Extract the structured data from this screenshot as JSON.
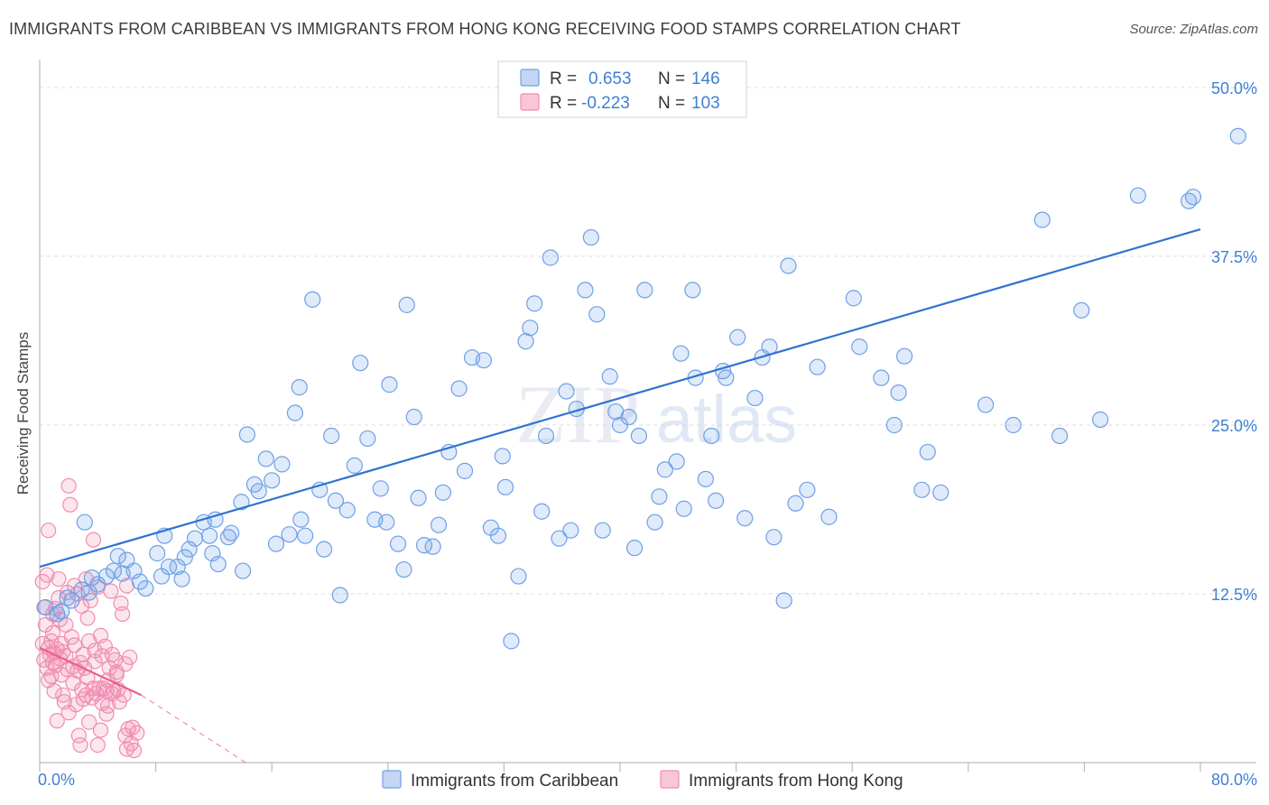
{
  "title": "IMMIGRANTS FROM CARIBBEAN VS IMMIGRANTS FROM HONG KONG RECEIVING FOOD STAMPS CORRELATION CHART",
  "source": "Source: ZipAtlas.com",
  "watermark": {
    "zip": "ZIP",
    "atlas": "atlas"
  },
  "stats": [
    {
      "r_label": "R = ",
      "r_value": "0.653",
      "n_label": "N = ",
      "n_value": "146"
    },
    {
      "r_label": "R = ",
      "r_value": "-0.223",
      "n_label": "N = ",
      "n_value": "103"
    }
  ],
  "colors": {
    "blue": "#6fa0e6",
    "blue_line": "#2f73d0",
    "pink": "#f08cb0",
    "pink_line": "#e8608e",
    "axis_text": "#3f7fd4"
  },
  "chart_data": {
    "type": "scatter",
    "title": "IMMIGRANTS FROM CARIBBEAN VS IMMIGRANTS FROM HONG KONG RECEIVING FOOD STAMPS CORRELATION CHART",
    "xlabel": "",
    "ylabel": "Receiving Food Stamps",
    "xlim": [
      0,
      80
    ],
    "ylim": [
      0,
      50
    ],
    "x_tick_labels": [
      "0.0%",
      "80.0%"
    ],
    "y_ticks": [
      12.5,
      25.0,
      37.5,
      50.0
    ],
    "y_tick_labels": [
      "12.5%",
      "25.0%",
      "37.5%",
      "50.0%"
    ],
    "grid": true,
    "legend_position": "bottom",
    "series": [
      {
        "name": "Immigrants from Caribbean",
        "color": "#6fa0e6",
        "trend": {
          "x": [
            0,
            80
          ],
          "y": [
            14.5,
            39.5
          ]
        },
        "points": [
          [
            0.4,
            11.5
          ],
          [
            1.2,
            11.0
          ],
          [
            1.5,
            11.2
          ],
          [
            1.9,
            12.2
          ],
          [
            2.2,
            12.0
          ],
          [
            2.9,
            12.8
          ],
          [
            3.1,
            17.8
          ],
          [
            3.4,
            12.6
          ],
          [
            3.6,
            13.7
          ],
          [
            4.0,
            13.2
          ],
          [
            4.6,
            13.8
          ],
          [
            5.1,
            14.2
          ],
          [
            5.4,
            15.3
          ],
          [
            5.7,
            14.0
          ],
          [
            6.0,
            15.0
          ],
          [
            6.5,
            14.2
          ],
          [
            6.9,
            13.4
          ],
          [
            7.3,
            12.9
          ],
          [
            8.1,
            15.5
          ],
          [
            8.4,
            13.8
          ],
          [
            8.6,
            16.8
          ],
          [
            8.9,
            14.5
          ],
          [
            9.5,
            14.5
          ],
          [
            9.8,
            13.6
          ],
          [
            10.0,
            15.2
          ],
          [
            10.3,
            15.8
          ],
          [
            10.7,
            16.6
          ],
          [
            11.3,
            17.8
          ],
          [
            11.7,
            16.8
          ],
          [
            11.9,
            15.5
          ],
          [
            12.1,
            18.0
          ],
          [
            12.3,
            14.7
          ],
          [
            13.0,
            16.7
          ],
          [
            13.2,
            17.0
          ],
          [
            13.9,
            19.3
          ],
          [
            14.0,
            14.2
          ],
          [
            14.3,
            24.3
          ],
          [
            14.8,
            20.6
          ],
          [
            15.1,
            20.1
          ],
          [
            15.6,
            22.5
          ],
          [
            16.0,
            20.9
          ],
          [
            16.3,
            16.2
          ],
          [
            16.7,
            22.1
          ],
          [
            17.2,
            16.9
          ],
          [
            17.6,
            25.9
          ],
          [
            17.9,
            27.8
          ],
          [
            18.0,
            18.0
          ],
          [
            18.3,
            16.8
          ],
          [
            18.8,
            34.3
          ],
          [
            19.3,
            20.2
          ],
          [
            19.6,
            15.8
          ],
          [
            20.1,
            24.2
          ],
          [
            20.4,
            19.4
          ],
          [
            20.7,
            12.4
          ],
          [
            21.2,
            18.7
          ],
          [
            21.7,
            22.0
          ],
          [
            22.1,
            29.6
          ],
          [
            22.6,
            24.0
          ],
          [
            23.1,
            18.0
          ],
          [
            23.5,
            20.3
          ],
          [
            23.9,
            17.8
          ],
          [
            24.1,
            28.0
          ],
          [
            24.7,
            16.2
          ],
          [
            25.1,
            14.3
          ],
          [
            25.3,
            33.9
          ],
          [
            25.8,
            25.6
          ],
          [
            26.1,
            19.6
          ],
          [
            26.5,
            16.1
          ],
          [
            27.1,
            16.0
          ],
          [
            27.5,
            17.6
          ],
          [
            27.8,
            20.0
          ],
          [
            28.2,
            23.0
          ],
          [
            28.9,
            27.7
          ],
          [
            29.3,
            21.6
          ],
          [
            29.8,
            30.0
          ],
          [
            30.6,
            29.8
          ],
          [
            31.1,
            17.4
          ],
          [
            31.6,
            16.8
          ],
          [
            31.9,
            22.7
          ],
          [
            32.1,
            20.4
          ],
          [
            32.5,
            9.0
          ],
          [
            33.0,
            13.8
          ],
          [
            33.5,
            31.2
          ],
          [
            33.8,
            32.2
          ],
          [
            34.1,
            34.0
          ],
          [
            34.6,
            18.6
          ],
          [
            34.9,
            24.2
          ],
          [
            35.2,
            37.4
          ],
          [
            35.8,
            16.6
          ],
          [
            36.3,
            27.5
          ],
          [
            36.6,
            17.2
          ],
          [
            37.0,
            26.2
          ],
          [
            37.6,
            35.0
          ],
          [
            38.0,
            38.9
          ],
          [
            38.4,
            33.2
          ],
          [
            38.8,
            17.2
          ],
          [
            39.3,
            28.6
          ],
          [
            39.7,
            26.0
          ],
          [
            40.0,
            25.0
          ],
          [
            40.6,
            25.6
          ],
          [
            41.0,
            15.9
          ],
          [
            41.3,
            24.2
          ],
          [
            41.7,
            35.0
          ],
          [
            42.4,
            17.8
          ],
          [
            42.7,
            19.7
          ],
          [
            43.1,
            21.7
          ],
          [
            43.9,
            22.3
          ],
          [
            44.2,
            30.3
          ],
          [
            44.4,
            18.8
          ],
          [
            45.0,
            35.0
          ],
          [
            45.2,
            28.5
          ],
          [
            45.9,
            21.0
          ],
          [
            46.3,
            24.2
          ],
          [
            46.6,
            19.4
          ],
          [
            47.1,
            29.0
          ],
          [
            47.3,
            28.5
          ],
          [
            48.1,
            31.5
          ],
          [
            48.6,
            18.1
          ],
          [
            49.3,
            27.0
          ],
          [
            49.8,
            30.0
          ],
          [
            50.3,
            30.8
          ],
          [
            50.6,
            16.7
          ],
          [
            51.3,
            12.0
          ],
          [
            51.6,
            36.8
          ],
          [
            52.1,
            19.2
          ],
          [
            52.9,
            20.2
          ],
          [
            53.6,
            29.3
          ],
          [
            54.4,
            18.2
          ],
          [
            56.1,
            34.4
          ],
          [
            56.5,
            30.8
          ],
          [
            58.0,
            28.5
          ],
          [
            58.9,
            25.0
          ],
          [
            59.2,
            27.4
          ],
          [
            59.6,
            30.1
          ],
          [
            60.8,
            20.2
          ],
          [
            61.2,
            23.0
          ],
          [
            62.1,
            20.0
          ],
          [
            65.2,
            26.5
          ],
          [
            67.1,
            25.0
          ],
          [
            69.1,
            40.2
          ],
          [
            70.3,
            24.2
          ],
          [
            71.8,
            33.5
          ],
          [
            73.1,
            25.4
          ],
          [
            75.7,
            42.0
          ],
          [
            79.2,
            41.6
          ],
          [
            79.5,
            41.9
          ],
          [
            82.6,
            46.4
          ]
        ]
      },
      {
        "name": "Immigrants from Hong Kong",
        "color": "#f08cb0",
        "trend": {
          "x": [
            0,
            7
          ],
          "y": [
            8.5,
            5.0
          ]
        },
        "trend_dashed": {
          "x": [
            7,
            14.2
          ],
          "y": [
            5.0,
            0.0
          ]
        },
        "points": [
          [
            0.2,
            13.4
          ],
          [
            0.2,
            8.8
          ],
          [
            0.3,
            7.6
          ],
          [
            0.3,
            11.5
          ],
          [
            0.4,
            10.2
          ],
          [
            0.5,
            7.0
          ],
          [
            0.6,
            8.5
          ],
          [
            0.6,
            6.1
          ],
          [
            0.6,
            17.2
          ],
          [
            0.7,
            8.0
          ],
          [
            0.8,
            9.0
          ],
          [
            0.8,
            6.4
          ],
          [
            0.9,
            9.6
          ],
          [
            0.9,
            7.4
          ],
          [
            1.0,
            8.1
          ],
          [
            1.0,
            5.3
          ],
          [
            1.1,
            11.4
          ],
          [
            1.1,
            7.2
          ],
          [
            1.2,
            3.1
          ],
          [
            1.2,
            8.4
          ],
          [
            1.3,
            13.6
          ],
          [
            1.4,
            7.7
          ],
          [
            1.5,
            8.8
          ],
          [
            1.5,
            6.5
          ],
          [
            1.6,
            5.0
          ],
          [
            1.6,
            8.2
          ],
          [
            1.7,
            4.5
          ],
          [
            1.8,
            7.9
          ],
          [
            1.8,
            10.2
          ],
          [
            1.9,
            6.9
          ],
          [
            2.0,
            3.7
          ],
          [
            2.0,
            20.5
          ],
          [
            2.1,
            19.1
          ],
          [
            2.2,
            9.3
          ],
          [
            2.3,
            7.1
          ],
          [
            2.3,
            5.9
          ],
          [
            2.4,
            8.7
          ],
          [
            2.5,
            4.3
          ],
          [
            2.6,
            6.8
          ],
          [
            2.6,
            12.5
          ],
          [
            2.7,
            2.0
          ],
          [
            2.8,
            7.4
          ],
          [
            2.8,
            1.3
          ],
          [
            2.9,
            5.4
          ],
          [
            3.0,
            8.0
          ],
          [
            3.0,
            4.7
          ],
          [
            3.1,
            7.0
          ],
          [
            3.2,
            13.6
          ],
          [
            3.2,
            5.0
          ],
          [
            3.3,
            6.3
          ],
          [
            3.4,
            9.0
          ],
          [
            3.4,
            3.0
          ],
          [
            3.5,
            12.0
          ],
          [
            3.6,
            4.8
          ],
          [
            3.7,
            5.5
          ],
          [
            3.7,
            16.5
          ],
          [
            3.8,
            8.3
          ],
          [
            3.9,
            5.1
          ],
          [
            4.0,
            1.3
          ],
          [
            4.0,
            13.0
          ],
          [
            4.1,
            5.5
          ],
          [
            4.2,
            2.4
          ],
          [
            4.3,
            7.9
          ],
          [
            4.3,
            4.4
          ],
          [
            4.4,
            5.5
          ],
          [
            4.5,
            8.6
          ],
          [
            4.6,
            3.6
          ],
          [
            4.6,
            5.3
          ],
          [
            4.7,
            6.1
          ],
          [
            4.8,
            7.0
          ],
          [
            4.9,
            12.7
          ],
          [
            5.0,
            5.1
          ],
          [
            5.0,
            8.0
          ],
          [
            5.1,
            5.3
          ],
          [
            5.2,
            7.6
          ],
          [
            5.3,
            6.5
          ],
          [
            5.4,
            5.4
          ],
          [
            5.5,
            4.5
          ],
          [
            5.6,
            11.8
          ],
          [
            5.7,
            11.0
          ],
          [
            5.8,
            5.0
          ],
          [
            5.9,
            7.3
          ],
          [
            6.0,
            13.1
          ],
          [
            6.1,
            2.5
          ],
          [
            6.2,
            7.8
          ],
          [
            6.3,
            1.4
          ],
          [
            6.4,
            2.6
          ],
          [
            0.9,
            11.0
          ],
          [
            1.3,
            12.2
          ],
          [
            1.9,
            12.6
          ],
          [
            2.4,
            13.1
          ],
          [
            3.3,
            10.7
          ],
          [
            4.2,
            9.4
          ],
          [
            5.3,
            6.7
          ],
          [
            0.5,
            13.9
          ],
          [
            1.4,
            10.6
          ],
          [
            2.9,
            11.6
          ],
          [
            3.8,
            7.5
          ],
          [
            4.7,
            4.2
          ],
          [
            5.9,
            2.0
          ],
          [
            6.0,
            1.0
          ],
          [
            6.5,
            0.9
          ],
          [
            6.7,
            2.2
          ]
        ]
      }
    ]
  },
  "legend": {
    "items": [
      {
        "label": "Immigrants from Caribbean"
      },
      {
        "label": "Immigrants from Hong Kong"
      }
    ]
  }
}
